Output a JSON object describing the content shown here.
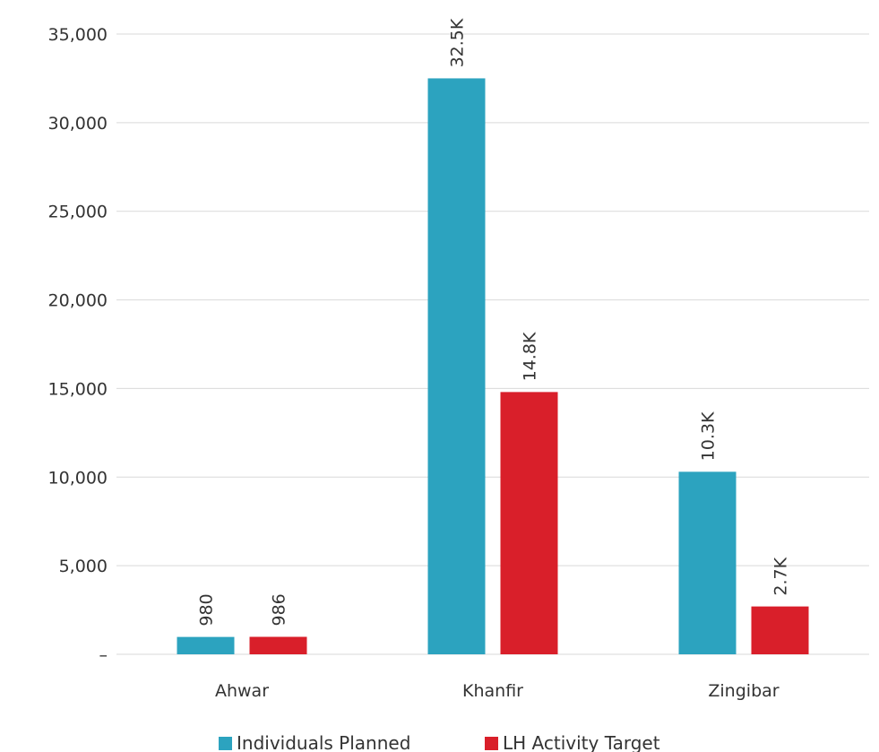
{
  "chart_data": {
    "type": "bar",
    "categories": [
      "Ahwar",
      "Khanfir",
      "Zingibar"
    ],
    "series": [
      {
        "name": "Individuals Planned",
        "color": "#2ca3bf",
        "values": [
          980,
          32500,
          10300
        ],
        "labels": [
          "980",
          "32.5K",
          "10.3K"
        ]
      },
      {
        "name": "LH Activity Target",
        "color": "#d91f2a",
        "values": [
          986,
          14800,
          2700
        ],
        "labels": [
          "986",
          "14.8K",
          "2.7K"
        ]
      }
    ],
    "yticks": [
      {
        "value": 0,
        "label": "–"
      },
      {
        "value": 5000,
        "label": "5,000"
      },
      {
        "value": 10000,
        "label": "10,000"
      },
      {
        "value": 15000,
        "label": "15,000"
      },
      {
        "value": 20000,
        "label": "20,000"
      },
      {
        "value": 25000,
        "label": "25,000"
      },
      {
        "value": 30000,
        "label": "30,000"
      },
      {
        "value": 35000,
        "label": "35,000"
      }
    ],
    "ylim": [
      0,
      35000
    ],
    "grid": true,
    "legend_position": "bottom",
    "title": "",
    "xlabel": "",
    "ylabel": ""
  }
}
